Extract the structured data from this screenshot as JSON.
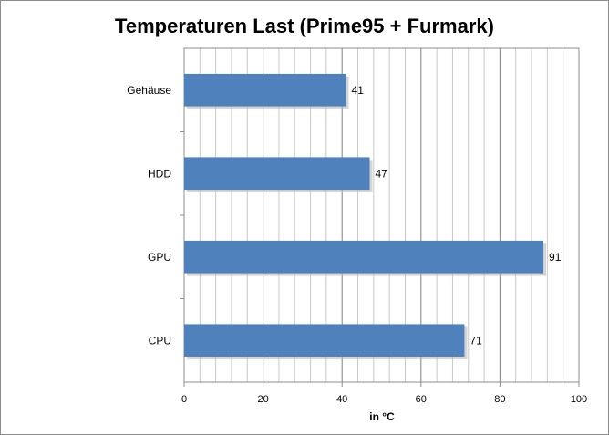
{
  "chart_data": {
    "type": "bar",
    "orientation": "horizontal",
    "title": "Temperaturen Last (Prime95 + Furmark)",
    "xlabel": "in °C",
    "ylabel": "",
    "categories": [
      "Gehäuse",
      "HDD",
      "GPU",
      "CPU"
    ],
    "values": [
      41,
      47,
      91,
      71
    ],
    "xlim": [
      0,
      100
    ],
    "xticks": [
      "0",
      "20",
      "40",
      "60",
      "80",
      "100"
    ],
    "grid": true,
    "legend": "none",
    "bar_color": "#4f81bd"
  }
}
